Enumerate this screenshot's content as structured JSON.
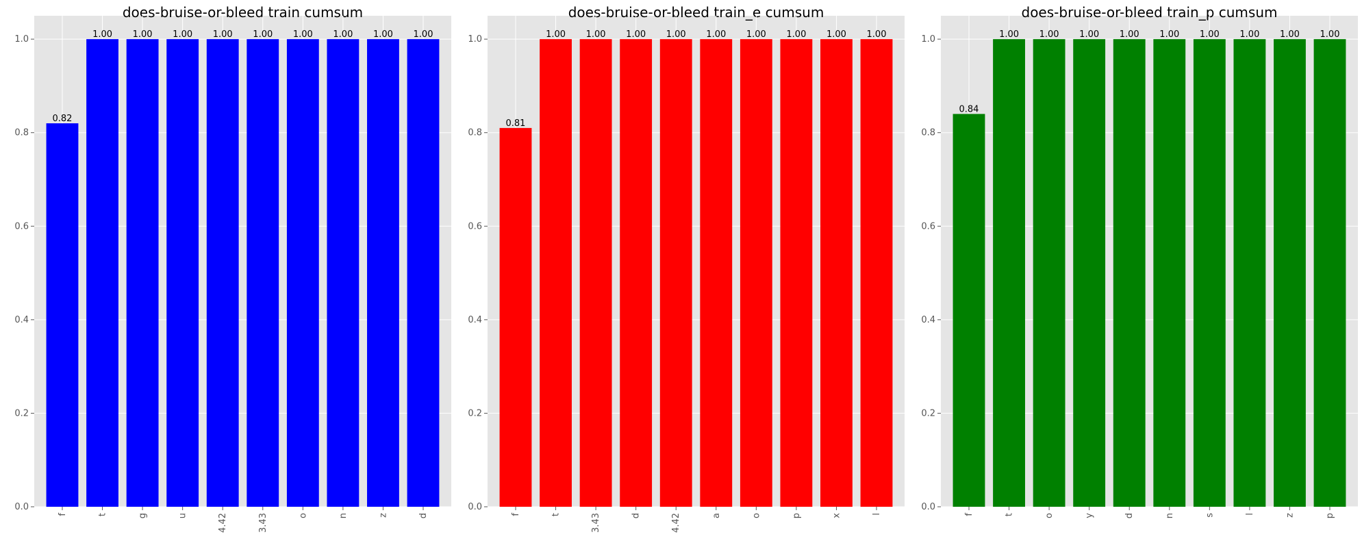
{
  "chart_data": [
    {
      "type": "bar",
      "title": "does-bruise-or-bleed train cumsum",
      "categories": [
        "f",
        "t",
        "g",
        "u",
        "4.42",
        "3.43",
        "o",
        "n",
        "z",
        "d"
      ],
      "values": [
        0.82,
        1.0,
        1.0,
        1.0,
        1.0,
        1.0,
        1.0,
        1.0,
        1.0,
        1.0
      ],
      "data_labels": [
        "0.82",
        "1.00",
        "1.00",
        "1.00",
        "1.00",
        "1.00",
        "1.00",
        "1.00",
        "1.00",
        "1.00"
      ],
      "color": "#0000ff",
      "xlabel": "",
      "ylabel": "",
      "ylim": [
        0,
        1.05
      ],
      "yticks": [
        0.0,
        0.2,
        0.4,
        0.6,
        0.8,
        1.0
      ],
      "ytick_labels": [
        "0.0",
        "0.2",
        "0.4",
        "0.6",
        "0.8",
        "1.0"
      ],
      "grid": true,
      "background": "#e5e5e5"
    },
    {
      "type": "bar",
      "title": "does-bruise-or-bleed train_e cumsum",
      "categories": [
        "f",
        "t",
        "3.43",
        "d",
        "4.42",
        "a",
        "o",
        "p",
        "x",
        "l"
      ],
      "values": [
        0.81,
        1.0,
        1.0,
        1.0,
        1.0,
        1.0,
        1.0,
        1.0,
        1.0,
        1.0
      ],
      "data_labels": [
        "0.81",
        "1.00",
        "1.00",
        "1.00",
        "1.00",
        "1.00",
        "1.00",
        "1.00",
        "1.00",
        "1.00"
      ],
      "color": "#ff0000",
      "xlabel": "",
      "ylabel": "",
      "ylim": [
        0,
        1.05
      ],
      "yticks": [
        0.0,
        0.2,
        0.4,
        0.6,
        0.8,
        1.0
      ],
      "ytick_labels": [
        "0.0",
        "0.2",
        "0.4",
        "0.6",
        "0.8",
        "1.0"
      ],
      "grid": true,
      "background": "#e5e5e5"
    },
    {
      "type": "bar",
      "title": "does-bruise-or-bleed train_p cumsum",
      "categories": [
        "f",
        "t",
        "o",
        "y",
        "d",
        "n",
        "s",
        "l",
        "z",
        "p"
      ],
      "values": [
        0.84,
        1.0,
        1.0,
        1.0,
        1.0,
        1.0,
        1.0,
        1.0,
        1.0,
        1.0
      ],
      "data_labels": [
        "0.84",
        "1.00",
        "1.00",
        "1.00",
        "1.00",
        "1.00",
        "1.00",
        "1.00",
        "1.00",
        "1.00"
      ],
      "color": "#008000",
      "xlabel": "",
      "ylabel": "",
      "ylim": [
        0,
        1.05
      ],
      "yticks": [
        0.0,
        0.2,
        0.4,
        0.6,
        0.8,
        1.0
      ],
      "ytick_labels": [
        "0.0",
        "0.2",
        "0.4",
        "0.6",
        "0.8",
        "1.0"
      ],
      "grid": true,
      "background": "#e5e5e5"
    }
  ]
}
